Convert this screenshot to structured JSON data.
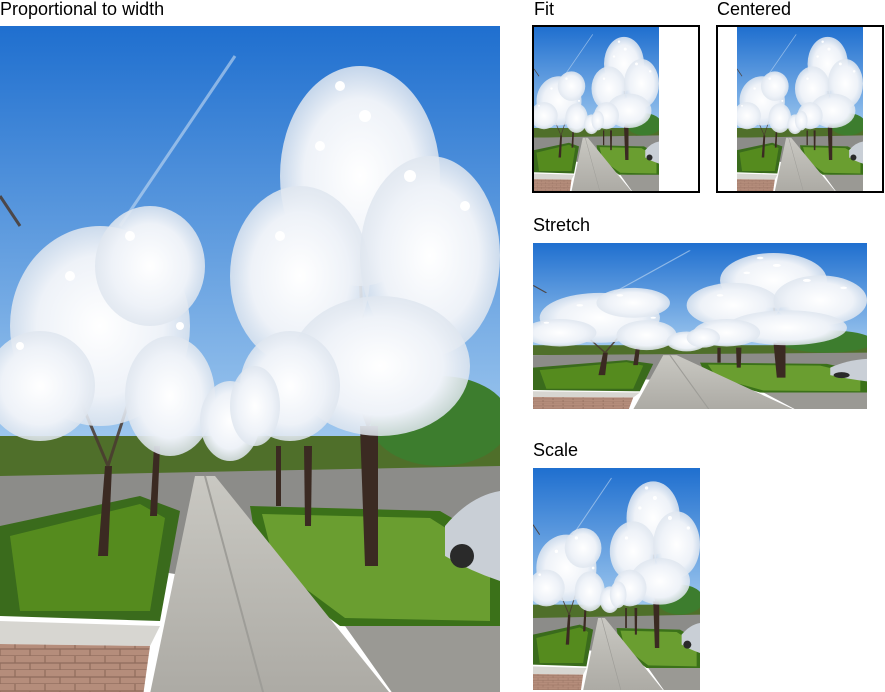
{
  "labels": {
    "proportional": "Proportional to width",
    "fit": "Fit",
    "centered": "Centered",
    "stretch": "Stretch",
    "scale": "Scale"
  },
  "photo": {
    "subject": "sidewalk lined with white flowering pear trees",
    "colors": {
      "sky_top": "#1f6fcf",
      "sky_bottom": "#9cc7ee",
      "blossom": "#f4f6fb",
      "trunk": "#3b2a22",
      "hedge": "#3f7d1c",
      "hedge_light": "#7fb23a",
      "sidewalk": "#b9b8b3",
      "asphalt": "#8f8f8c",
      "brick": "#b08a78"
    }
  }
}
